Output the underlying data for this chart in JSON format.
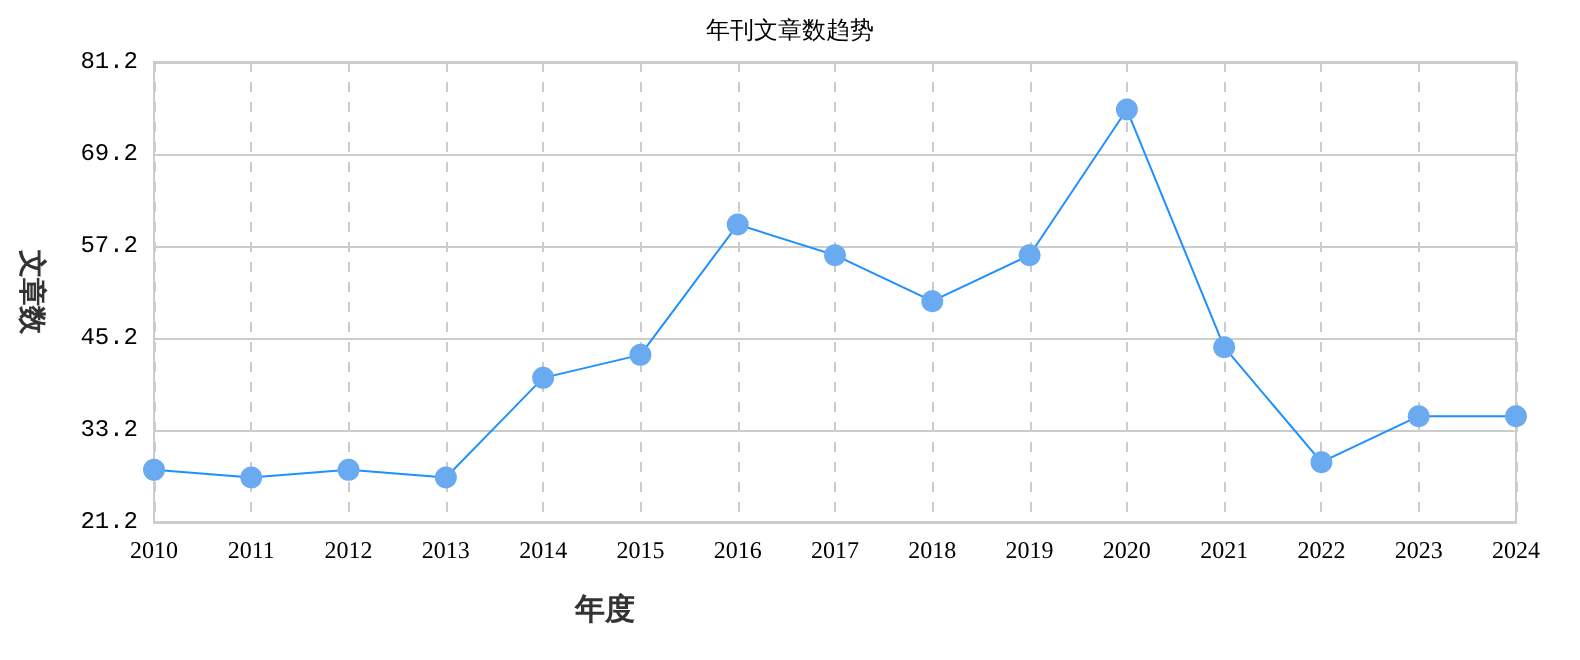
{
  "chart_data": {
    "type": "line",
    "title": "年刊文章数趋势",
    "xlabel": "年度",
    "ylabel": "文章数",
    "categories": [
      "2010",
      "2011",
      "2012",
      "2013",
      "2014",
      "2015",
      "2016",
      "2017",
      "2018",
      "2019",
      "2020",
      "2021",
      "2022",
      "2023",
      "2024"
    ],
    "series": [
      {
        "color": "#1e90ff",
        "values": [
          28,
          27,
          28,
          27,
          40,
          43,
          60,
          56,
          50,
          56,
          75,
          44,
          29,
          35,
          35
        ]
      }
    ],
    "ylim": [
      21.2,
      81.2
    ],
    "yticks": [
      21.2,
      33.2,
      45.2,
      57.2,
      69.2,
      81.2
    ],
    "grid": true,
    "marker": "circle",
    "line_style": "solid"
  }
}
